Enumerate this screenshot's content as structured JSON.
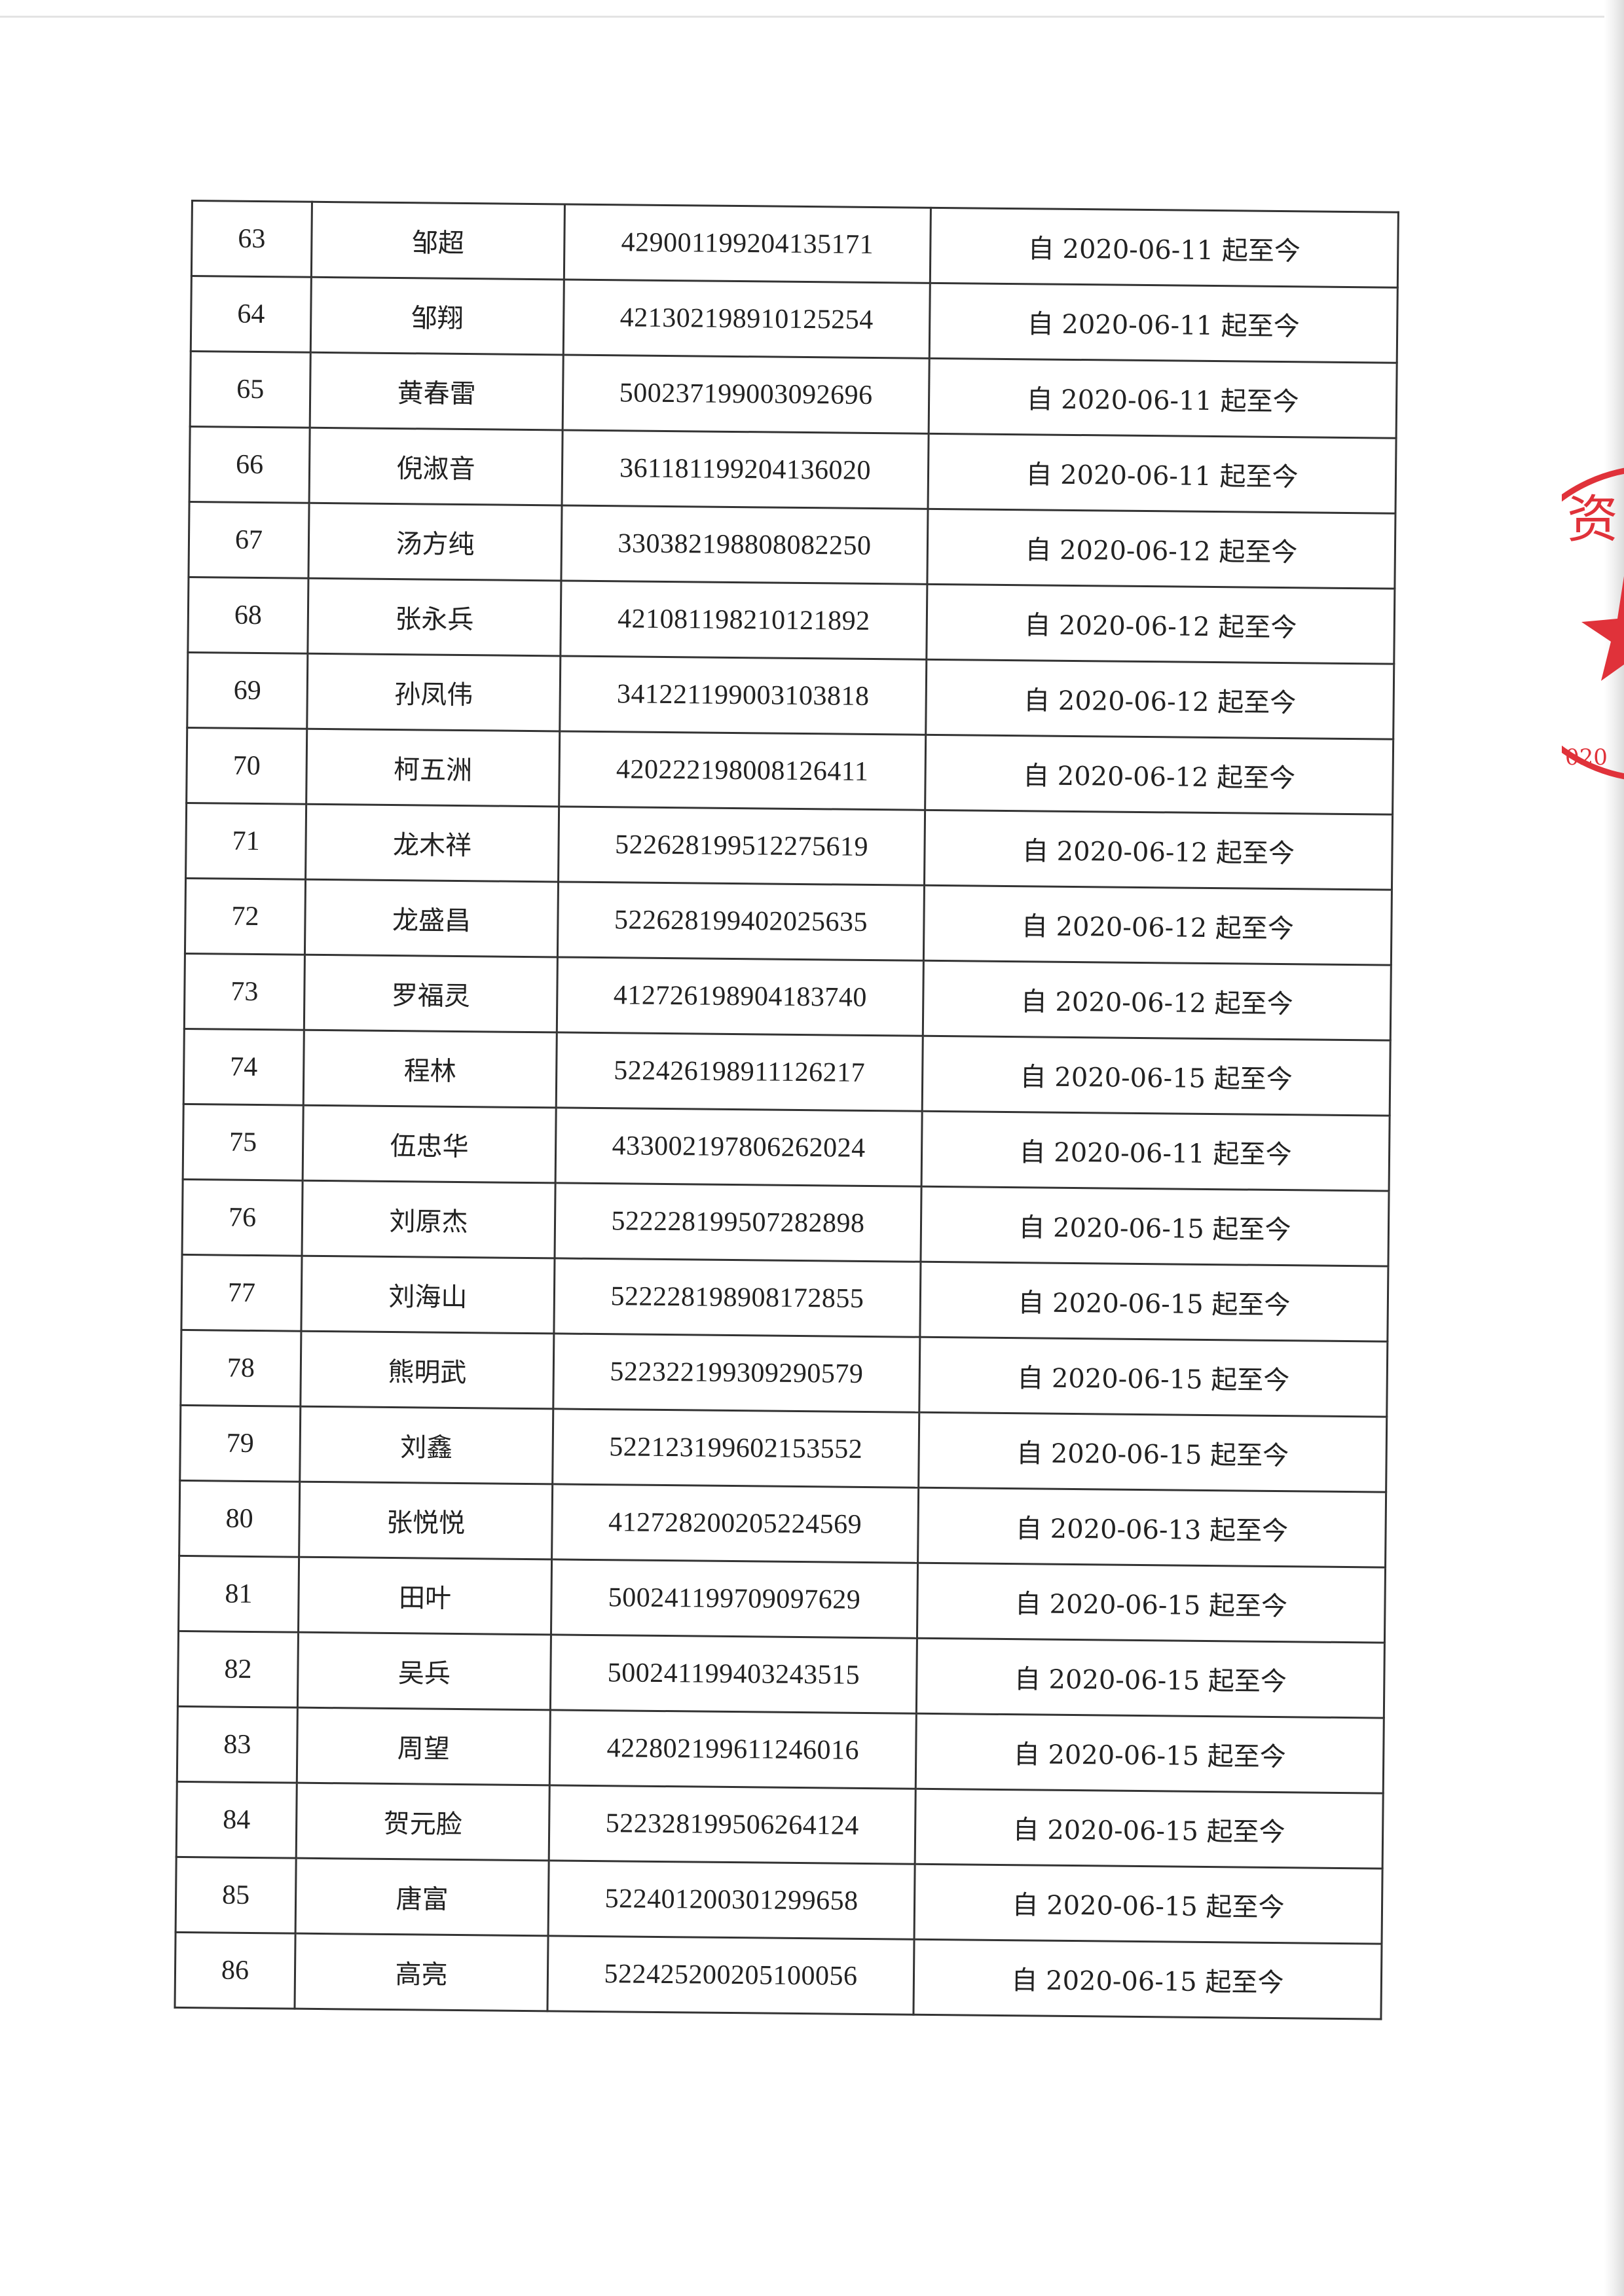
{
  "table": {
    "rows": [
      {
        "no": "63",
        "name": "邹超",
        "id": "429001199204135171",
        "period": "自 2020-06-11 起至今"
      },
      {
        "no": "64",
        "name": "邹翔",
        "id": "421302198910125254",
        "period": "自 2020-06-11 起至今"
      },
      {
        "no": "65",
        "name": "黄春雷",
        "id": "500237199003092696",
        "period": "自 2020-06-11 起至今"
      },
      {
        "no": "66",
        "name": "倪淑音",
        "id": "361181199204136020",
        "period": "自 2020-06-11 起至今"
      },
      {
        "no": "67",
        "name": "汤方纯",
        "id": "330382198808082250",
        "period": "自 2020-06-12 起至今"
      },
      {
        "no": "68",
        "name": "张永兵",
        "id": "421081198210121892",
        "period": "自 2020-06-12 起至今"
      },
      {
        "no": "69",
        "name": "孙凤伟",
        "id": "341221199003103818",
        "period": "自 2020-06-12 起至今"
      },
      {
        "no": "70",
        "name": "柯五洲",
        "id": "420222198008126411",
        "period": "自 2020-06-12 起至今"
      },
      {
        "no": "71",
        "name": "龙木祥",
        "id": "522628199512275619",
        "period": "自 2020-06-12 起至今"
      },
      {
        "no": "72",
        "name": "龙盛昌",
        "id": "522628199402025635",
        "period": "自 2020-06-12 起至今"
      },
      {
        "no": "73",
        "name": "罗福灵",
        "id": "412726198904183740",
        "period": "自 2020-06-12 起至今"
      },
      {
        "no": "74",
        "name": "程林",
        "id": "522426198911126217",
        "period": "自 2020-06-15 起至今"
      },
      {
        "no": "75",
        "name": "伍忠华",
        "id": "433002197806262024",
        "period": "自 2020-06-11 起至今"
      },
      {
        "no": "76",
        "name": "刘原杰",
        "id": "522228199507282898",
        "period": "自 2020-06-15 起至今"
      },
      {
        "no": "77",
        "name": "刘海山",
        "id": "522228198908172855",
        "period": "自 2020-06-15 起至今"
      },
      {
        "no": "78",
        "name": "熊明武",
        "id": "522322199309290579",
        "period": "自 2020-06-15 起至今"
      },
      {
        "no": "79",
        "name": "刘鑫",
        "id": "522123199602153552",
        "period": "自 2020-06-15 起至今"
      },
      {
        "no": "80",
        "name": "张悦悦",
        "id": "412728200205224569",
        "period": "自 2020-06-13 起至今"
      },
      {
        "no": "81",
        "name": "田叶",
        "id": "500241199709097629",
        "period": "自 2020-06-15 起至今"
      },
      {
        "no": "82",
        "name": "吴兵",
        "id": "500241199403243515",
        "period": "自 2020-06-15 起至今"
      },
      {
        "no": "83",
        "name": "周望",
        "id": "422802199611246016",
        "period": "自 2020-06-15 起至今"
      },
      {
        "no": "84",
        "name": "贺元脸",
        "id": "522328199506264124",
        "period": "自 2020-06-15 起至今"
      },
      {
        "no": "85",
        "name": "唐富",
        "id": "522401200301299658",
        "period": "自 2020-06-15 起至今"
      },
      {
        "no": "86",
        "name": "高亮",
        "id": "522425200205100056",
        "period": "自 2020-06-15 起至今"
      }
    ]
  },
  "seal": {
    "text_fragment": "资",
    "year_fragment": "020",
    "color": "#e0323a"
  }
}
